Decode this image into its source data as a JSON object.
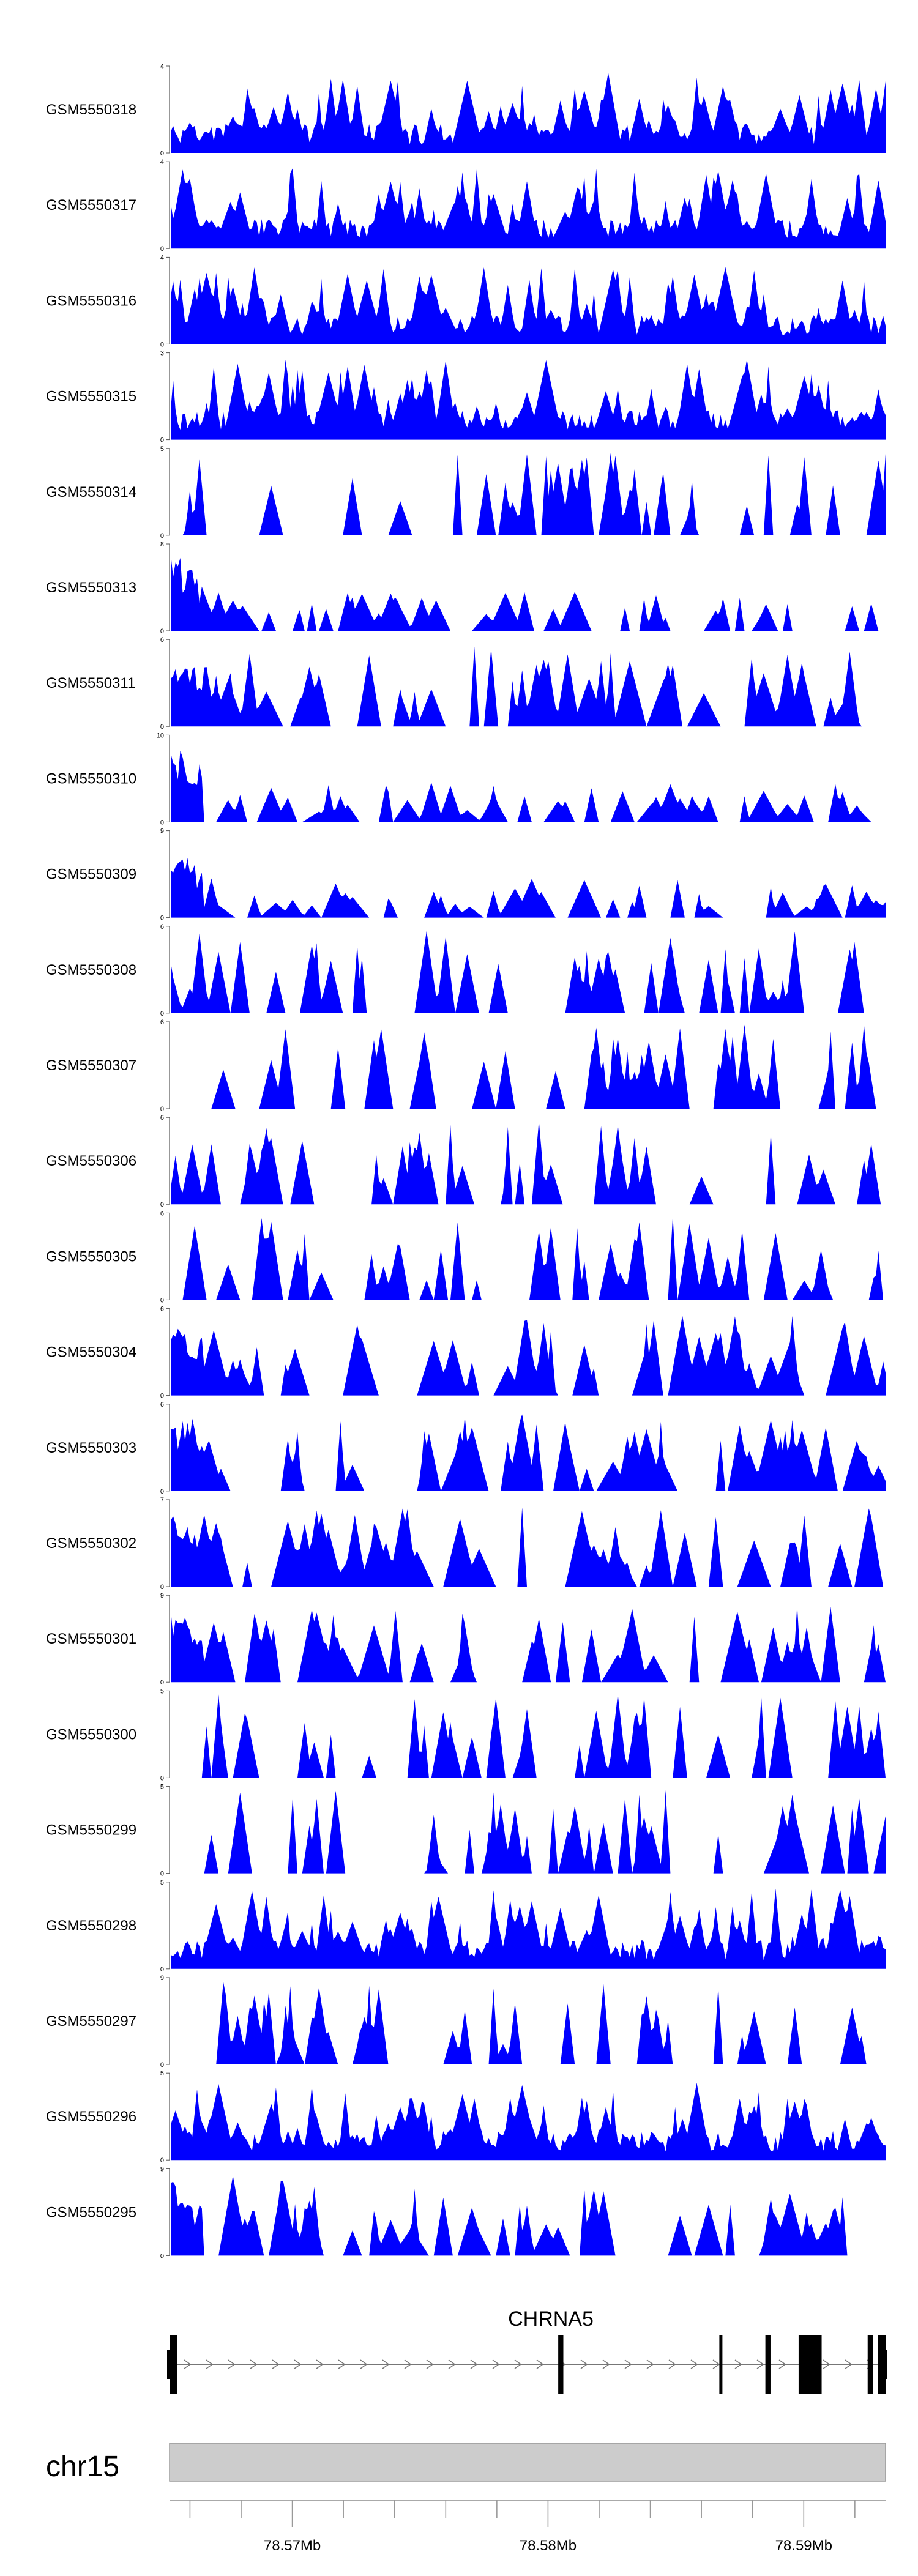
{
  "chart_data": {
    "type": "area",
    "title": "",
    "color": "#0000ff",
    "x_range": [
      78.5652,
      78.5932
    ],
    "x_unit": "Mb",
    "tracks": [
      {
        "label": "GSM5550318",
        "ymax": 4,
        "seed": 1,
        "style": "dense"
      },
      {
        "label": "GSM5550317",
        "ymax": 4,
        "seed": 2,
        "style": "dense"
      },
      {
        "label": "GSM5550316",
        "ymax": 4,
        "seed": 3,
        "style": "dense"
      },
      {
        "label": "GSM5550315",
        "ymax": 3,
        "seed": 4,
        "style": "dense"
      },
      {
        "label": "GSM5550314",
        "ymax": 5,
        "seed": 5,
        "style": "spiky"
      },
      {
        "label": "GSM5550313",
        "ymax": 8,
        "seed": 6,
        "style": "low"
      },
      {
        "label": "GSM5550311",
        "ymax": 6,
        "seed": 7,
        "style": "medium"
      },
      {
        "label": "GSM5550310",
        "ymax": 10,
        "seed": 8,
        "style": "low"
      },
      {
        "label": "GSM5550309",
        "ymax": 9,
        "seed": 9,
        "style": "low"
      },
      {
        "label": "GSM5550308",
        "ymax": 6,
        "seed": 10,
        "style": "spiky"
      },
      {
        "label": "GSM5550307",
        "ymax": 6,
        "seed": 11,
        "style": "spiky"
      },
      {
        "label": "GSM5550306",
        "ymax": 6,
        "seed": 12,
        "style": "spiky"
      },
      {
        "label": "GSM5550305",
        "ymax": 6,
        "seed": 13,
        "style": "spiky"
      },
      {
        "label": "GSM5550304",
        "ymax": 6,
        "seed": 14,
        "style": "medium"
      },
      {
        "label": "GSM5550303",
        "ymax": 6,
        "seed": 15,
        "style": "medium"
      },
      {
        "label": "GSM5550302",
        "ymax": 7,
        "seed": 16,
        "style": "medium"
      },
      {
        "label": "GSM5550301",
        "ymax": 9,
        "seed": 17,
        "style": "medium"
      },
      {
        "label": "GSM5550300",
        "ymax": 5,
        "seed": 18,
        "style": "spiky"
      },
      {
        "label": "GSM5550299",
        "ymax": 5,
        "seed": 19,
        "style": "spiky"
      },
      {
        "label": "GSM5550298",
        "ymax": 5,
        "seed": 20,
        "style": "dense"
      },
      {
        "label": "GSM5550297",
        "ymax": 9,
        "seed": 21,
        "style": "spiky"
      },
      {
        "label": "GSM5550296",
        "ymax": 5,
        "seed": 22,
        "style": "dense"
      },
      {
        "label": "GSM5550295",
        "ymax": 9,
        "seed": 23,
        "style": "medium"
      }
    ],
    "gene": {
      "name": "CHRNA5",
      "strand": "+",
      "start": 78.5652,
      "end": 78.5932,
      "exons": [
        [
          78.5652,
          78.5655
        ],
        [
          78.5804,
          78.5806
        ],
        [
          78.5867,
          78.5868
        ],
        [
          78.5885,
          78.5887
        ],
        [
          78.5898,
          78.5907
        ],
        [
          78.5925,
          78.5927
        ],
        [
          78.5929,
          78.5932
        ]
      ]
    },
    "chromosome": "chr15",
    "axis_ticks": [
      78.57,
      78.58,
      78.59
    ],
    "axis_tick_labels": [
      "78.57Mb",
      "78.58Mb",
      "78.59Mb"
    ]
  }
}
